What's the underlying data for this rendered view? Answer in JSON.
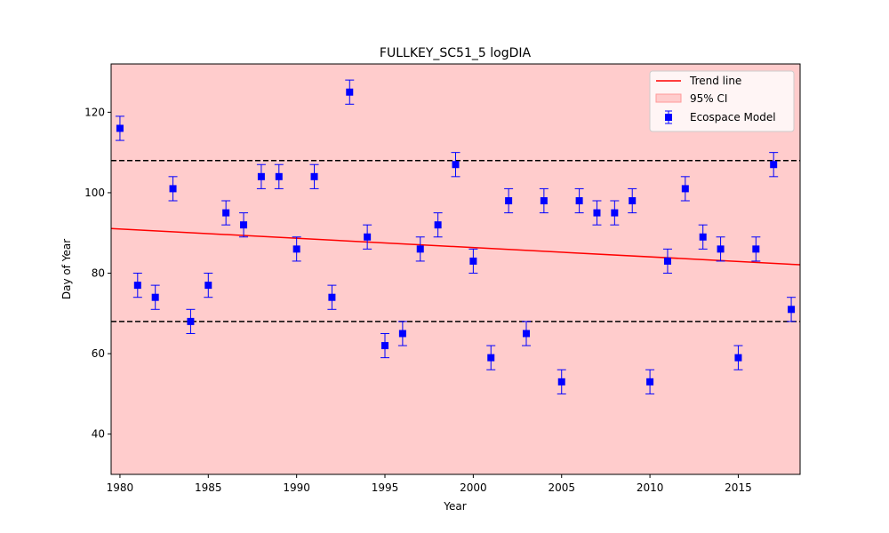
{
  "chart_data": {
    "type": "scatter",
    "title": "FULLKEY_SC51_5 logDIA",
    "xlabel": "Year",
    "ylabel": "Day of Year",
    "xlim": [
      1979.5,
      2018.5
    ],
    "ylim": [
      30,
      132
    ],
    "x_ticks": [
      1980,
      1985,
      1990,
      1995,
      2000,
      2005,
      2010,
      2015
    ],
    "y_ticks": [
      40,
      60,
      80,
      100,
      120
    ],
    "grid": false,
    "legend_position": "top-right",
    "background_color": "#ffcccc",
    "series": [
      {
        "name": "Ecospace Model",
        "color": "#0000ff",
        "marker": "square",
        "error": 3,
        "x": [
          1980,
          1981,
          1982,
          1983,
          1984,
          1985,
          1986,
          1987,
          1988,
          1989,
          1990,
          1991,
          1992,
          1993,
          1994,
          1995,
          1996,
          1997,
          1998,
          1999,
          2000,
          2001,
          2002,
          2003,
          2004,
          2005,
          2006,
          2007,
          2008,
          2009,
          2010,
          2011,
          2012,
          2013,
          2014,
          2015,
          2016,
          2017,
          2018
        ],
        "y": [
          116,
          77,
          74,
          101,
          68,
          77,
          95,
          92,
          104,
          104,
          86,
          104,
          74,
          125,
          89,
          62,
          65,
          86,
          92,
          107,
          83,
          59,
          98,
          65,
          98,
          53,
          98,
          95,
          95,
          98,
          53,
          83,
          101,
          89,
          86,
          59,
          86,
          107,
          71
        ]
      }
    ],
    "trend_line": {
      "name": "Trend line",
      "color": "#ff0000",
      "x": [
        1979.5,
        2018.5
      ],
      "y": [
        91.1,
        82.1
      ]
    },
    "ci_band": {
      "name": "95% CI",
      "color": "#ffcccc",
      "edge_color": "#ff9999"
    },
    "reference_lines": [
      {
        "y": 108,
        "style": "dashed",
        "color": "#000000"
      },
      {
        "y": 68,
        "style": "dashed",
        "color": "#000000"
      }
    ]
  }
}
